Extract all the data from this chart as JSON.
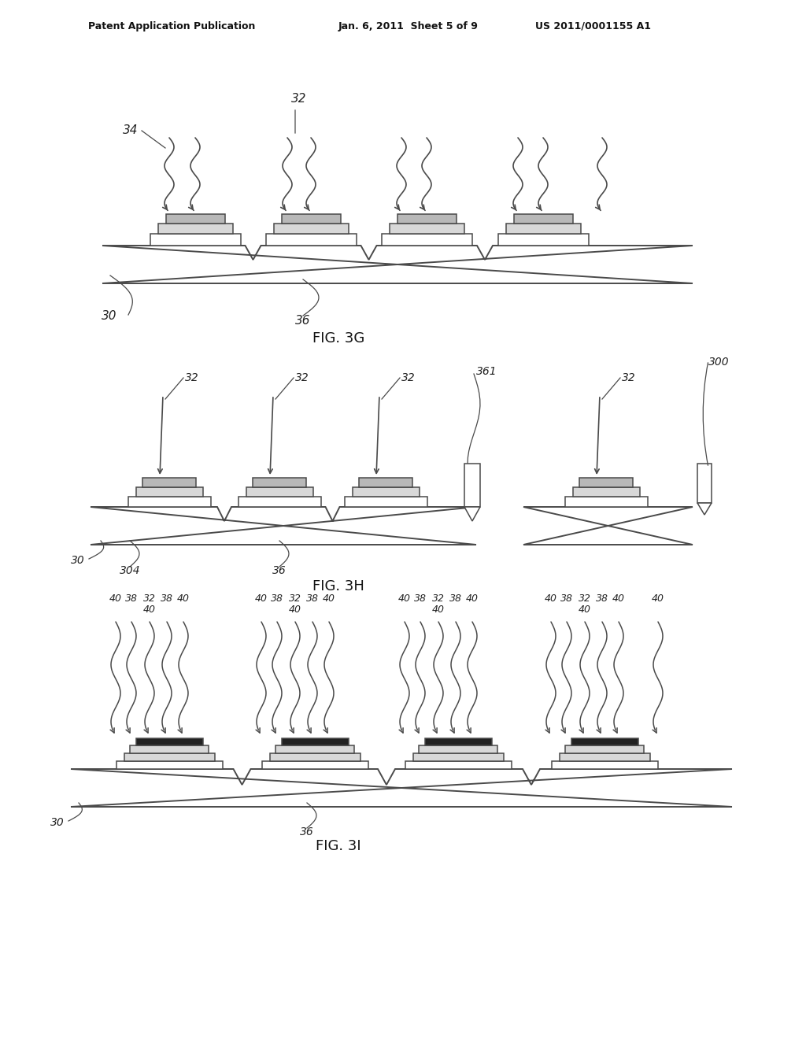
{
  "background_color": "#ffffff",
  "header_left": "Patent Application Publication",
  "header_mid": "Jan. 6, 2011  Sheet 5 of 9",
  "header_right": "US 2011/0001155 A1",
  "fig3g_label": "FIG. 3G",
  "fig3h_label": "FIG. 3H",
  "fig3i_label": "FIG. 3I",
  "line_color": "#4a4a4a",
  "fill_light": "#d8d8d8",
  "fill_medium": "#b8b8b8",
  "fill_dark": "#222222",
  "text_color": "#222222",
  "lw_main": 1.4,
  "lw_chip": 1.1
}
